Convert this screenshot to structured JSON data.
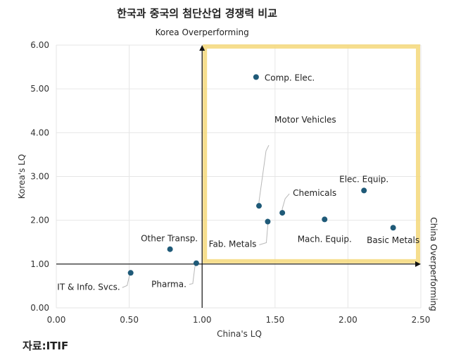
{
  "title": "한국과 중국의 첨단산업 경쟁력 비교",
  "source": "자료:ITIF",
  "chart_data": {
    "type": "scatter",
    "xlabel": "China's LQ",
    "ylabel": "Korea's LQ",
    "xlim": [
      0,
      2.5
    ],
    "ylim": [
      0,
      6
    ],
    "x_ticks": [
      "0.00",
      "0.50",
      "1.00",
      "1.50",
      "2.00",
      "2.50"
    ],
    "y_ticks": [
      "0.00",
      "1.00",
      "2.00",
      "3.00",
      "4.00",
      "5.00",
      "6.00"
    ],
    "grid": true,
    "reference_lines": {
      "x": 1.0,
      "y": 1.0
    },
    "quadrant_labels": {
      "top": "Korea Overperforming",
      "right": "China Overperforming"
    },
    "highlight_region": {
      "x": [
        1.0,
        2.5
      ],
      "y": [
        1.0,
        6.0
      ],
      "color": "#f5d87a"
    },
    "point_color": "#1f5a78",
    "points": [
      {
        "label": "Comp. Elec.",
        "x": 1.37,
        "y": 5.27
      },
      {
        "label": "Motor Vehicles",
        "x": 1.39,
        "y": 2.33
      },
      {
        "label": "Chemicals",
        "x": 1.55,
        "y": 2.17
      },
      {
        "label": "Elec. Equip.",
        "x": 2.11,
        "y": 2.68
      },
      {
        "label": "Fab. Metals",
        "x": 1.45,
        "y": 1.97
      },
      {
        "label": "Mach. Equip.",
        "x": 1.84,
        "y": 2.02
      },
      {
        "label": "Basic Metals",
        "x": 2.31,
        "y": 1.83
      },
      {
        "label": "Other Transp.",
        "x": 0.78,
        "y": 1.34
      },
      {
        "label": "Pharma.",
        "x": 0.96,
        "y": 1.02
      },
      {
        "label": "IT & Info. Svcs.",
        "x": 0.51,
        "y": 0.8
      }
    ]
  }
}
